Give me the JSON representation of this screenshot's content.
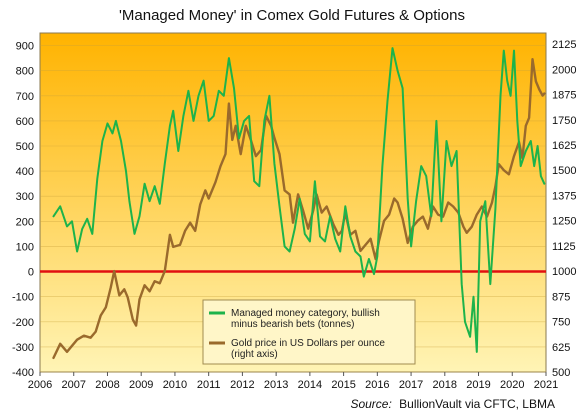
{
  "chart_data": {
    "type": "line",
    "title": "'Managed Money' in Comex Gold Futures & Options",
    "source_prefix": "Source:",
    "source_text": "BullionVault via CFTC, LBMA",
    "x_ticks": [
      "2006",
      "2007",
      "2008",
      "2009",
      "2010",
      "2011",
      "2012",
      "2013",
      "2014",
      "2015",
      "2016",
      "2017",
      "2018",
      "2019",
      "2020",
      "2021"
    ],
    "xlim": [
      2006,
      2021
    ],
    "y_left": {
      "min": -400,
      "max": 950,
      "ticks": [
        "900",
        "800",
        "700",
        "600",
        "500",
        "400",
        "300",
        "200",
        "100",
        "0",
        "-100",
        "-200",
        "-300",
        "-400"
      ]
    },
    "y_right": {
      "min": 500,
      "max": 2180,
      "ticks": [
        "2125",
        "2000",
        "1875",
        "1750",
        "1625",
        "1500",
        "1375",
        "1250",
        "1125",
        "1000",
        "875",
        "750",
        "625",
        "500"
      ]
    },
    "zero_line_value": 0,
    "legend": [
      {
        "label": [
          "Managed money category, bullish",
          "minus bearish bets (tonnes)"
        ],
        "color": "#1db34b"
      },
      {
        "label": [
          "Gold price in US Dollars per ounce",
          "(right axis)"
        ],
        "color": "#9a6a2c"
      }
    ],
    "colors": {
      "managed_money": "#1db34b",
      "gold": "#9a6a2c",
      "zero_line": "#e01010",
      "bg_top": "#ffb300",
      "bg_bottom": "#fff4b5"
    },
    "series": [
      {
        "name": "Managed money category, bullish minus bearish bets (tonnes)",
        "axis": "left",
        "points": [
          [
            2006.4,
            220
          ],
          [
            2006.6,
            260
          ],
          [
            2006.8,
            180
          ],
          [
            2006.95,
            200
          ],
          [
            2007.1,
            80
          ],
          [
            2007.25,
            170
          ],
          [
            2007.4,
            210
          ],
          [
            2007.55,
            150
          ],
          [
            2007.7,
            370
          ],
          [
            2007.85,
            520
          ],
          [
            2008.0,
            590
          ],
          [
            2008.15,
            550
          ],
          [
            2008.25,
            600
          ],
          [
            2008.4,
            520
          ],
          [
            2008.55,
            400
          ],
          [
            2008.65,
            280
          ],
          [
            2008.8,
            150
          ],
          [
            2008.95,
            220
          ],
          [
            2009.1,
            350
          ],
          [
            2009.25,
            280
          ],
          [
            2009.4,
            340
          ],
          [
            2009.55,
            270
          ],
          [
            2009.7,
            430
          ],
          [
            2009.85,
            580
          ],
          [
            2009.95,
            640
          ],
          [
            2010.1,
            480
          ],
          [
            2010.25,
            620
          ],
          [
            2010.4,
            720
          ],
          [
            2010.55,
            600
          ],
          [
            2010.7,
            700
          ],
          [
            2010.85,
            760
          ],
          [
            2011.0,
            600
          ],
          [
            2011.15,
            620
          ],
          [
            2011.3,
            720
          ],
          [
            2011.45,
            700
          ],
          [
            2011.6,
            850
          ],
          [
            2011.75,
            730
          ],
          [
            2011.9,
            530
          ],
          [
            2012.05,
            600
          ],
          [
            2012.2,
            620
          ],
          [
            2012.35,
            360
          ],
          [
            2012.5,
            340
          ],
          [
            2012.65,
            600
          ],
          [
            2012.8,
            700
          ],
          [
            2012.95,
            430
          ],
          [
            2013.1,
            260
          ],
          [
            2013.25,
            100
          ],
          [
            2013.4,
            80
          ],
          [
            2013.55,
            170
          ],
          [
            2013.7,
            290
          ],
          [
            2013.85,
            150
          ],
          [
            2014.0,
            120
          ],
          [
            2014.15,
            360
          ],
          [
            2014.3,
            140
          ],
          [
            2014.45,
            120
          ],
          [
            2014.6,
            220
          ],
          [
            2014.75,
            130
          ],
          [
            2014.9,
            80
          ],
          [
            2015.05,
            260
          ],
          [
            2015.2,
            140
          ],
          [
            2015.35,
            80
          ],
          [
            2015.5,
            60
          ],
          [
            2015.6,
            -20
          ],
          [
            2015.75,
            50
          ],
          [
            2015.9,
            -10
          ],
          [
            2016.0,
            60
          ],
          [
            2016.15,
            420
          ],
          [
            2016.3,
            680
          ],
          [
            2016.45,
            890
          ],
          [
            2016.6,
            800
          ],
          [
            2016.75,
            730
          ],
          [
            2016.9,
            290
          ],
          [
            2017.0,
            100
          ],
          [
            2017.15,
            280
          ],
          [
            2017.3,
            420
          ],
          [
            2017.45,
            380
          ],
          [
            2017.6,
            220
          ],
          [
            2017.75,
            600
          ],
          [
            2017.9,
            200
          ],
          [
            2018.05,
            520
          ],
          [
            2018.2,
            420
          ],
          [
            2018.35,
            480
          ],
          [
            2018.5,
            -50
          ],
          [
            2018.6,
            -200
          ],
          [
            2018.75,
            -260
          ],
          [
            2018.85,
            -100
          ],
          [
            2018.95,
            -320
          ],
          [
            2019.05,
            200
          ],
          [
            2019.2,
            280
          ],
          [
            2019.35,
            -50
          ],
          [
            2019.5,
            250
          ],
          [
            2019.65,
            700
          ],
          [
            2019.75,
            880
          ],
          [
            2019.85,
            760
          ],
          [
            2019.95,
            700
          ],
          [
            2020.05,
            880
          ],
          [
            2020.15,
            600
          ],
          [
            2020.25,
            420
          ],
          [
            2020.4,
            480
          ],
          [
            2020.55,
            520
          ],
          [
            2020.65,
            420
          ],
          [
            2020.75,
            500
          ],
          [
            2020.85,
            380
          ],
          [
            2020.95,
            350
          ]
        ]
      },
      {
        "name": "Gold price in US Dollars per ounce (right axis)",
        "axis": "right",
        "points": [
          [
            2006.4,
            570
          ],
          [
            2006.6,
            640
          ],
          [
            2006.8,
            600
          ],
          [
            2006.95,
            630
          ],
          [
            2007.1,
            660
          ],
          [
            2007.3,
            680
          ],
          [
            2007.5,
            670
          ],
          [
            2007.65,
            700
          ],
          [
            2007.8,
            780
          ],
          [
            2007.95,
            820
          ],
          [
            2008.1,
            920
          ],
          [
            2008.2,
            1000
          ],
          [
            2008.35,
            880
          ],
          [
            2008.5,
            910
          ],
          [
            2008.6,
            870
          ],
          [
            2008.75,
            760
          ],
          [
            2008.85,
            730
          ],
          [
            2008.95,
            860
          ],
          [
            2009.1,
            930
          ],
          [
            2009.25,
            900
          ],
          [
            2009.4,
            950
          ],
          [
            2009.55,
            940
          ],
          [
            2009.7,
            1000
          ],
          [
            2009.85,
            1180
          ],
          [
            2009.95,
            1120
          ],
          [
            2010.15,
            1130
          ],
          [
            2010.3,
            1200
          ],
          [
            2010.45,
            1240
          ],
          [
            2010.6,
            1200
          ],
          [
            2010.75,
            1330
          ],
          [
            2010.9,
            1400
          ],
          [
            2011.0,
            1360
          ],
          [
            2011.2,
            1440
          ],
          [
            2011.35,
            1520
          ],
          [
            2011.5,
            1580
          ],
          [
            2011.6,
            1830
          ],
          [
            2011.7,
            1650
          ],
          [
            2011.8,
            1720
          ],
          [
            2011.95,
            1580
          ],
          [
            2012.1,
            1720
          ],
          [
            2012.25,
            1650
          ],
          [
            2012.4,
            1570
          ],
          [
            2012.55,
            1600
          ],
          [
            2012.7,
            1770
          ],
          [
            2012.85,
            1720
          ],
          [
            2012.95,
            1660
          ],
          [
            2013.1,
            1580
          ],
          [
            2013.25,
            1400
          ],
          [
            2013.4,
            1380
          ],
          [
            2013.5,
            1240
          ],
          [
            2013.65,
            1380
          ],
          [
            2013.8,
            1300
          ],
          [
            2013.95,
            1210
          ],
          [
            2014.1,
            1300
          ],
          [
            2014.2,
            1380
          ],
          [
            2014.35,
            1290
          ],
          [
            2014.5,
            1320
          ],
          [
            2014.7,
            1230
          ],
          [
            2014.85,
            1180
          ],
          [
            2014.95,
            1200
          ],
          [
            2015.05,
            1290
          ],
          [
            2015.2,
            1180
          ],
          [
            2015.35,
            1200
          ],
          [
            2015.5,
            1100
          ],
          [
            2015.65,
            1130
          ],
          [
            2015.8,
            1160
          ],
          [
            2015.95,
            1060
          ],
          [
            2016.05,
            1150
          ],
          [
            2016.2,
            1250
          ],
          [
            2016.35,
            1280
          ],
          [
            2016.5,
            1360
          ],
          [
            2016.6,
            1340
          ],
          [
            2016.75,
            1260
          ],
          [
            2016.9,
            1140
          ],
          [
            2017.05,
            1220
          ],
          [
            2017.2,
            1250
          ],
          [
            2017.35,
            1270
          ],
          [
            2017.5,
            1210
          ],
          [
            2017.65,
            1320
          ],
          [
            2017.8,
            1280
          ],
          [
            2017.95,
            1270
          ],
          [
            2018.1,
            1340
          ],
          [
            2018.25,
            1320
          ],
          [
            2018.4,
            1290
          ],
          [
            2018.55,
            1220
          ],
          [
            2018.65,
            1190
          ],
          [
            2018.8,
            1220
          ],
          [
            2018.95,
            1280
          ],
          [
            2019.1,
            1320
          ],
          [
            2019.25,
            1270
          ],
          [
            2019.4,
            1340
          ],
          [
            2019.5,
            1420
          ],
          [
            2019.6,
            1530
          ],
          [
            2019.75,
            1500
          ],
          [
            2019.9,
            1480
          ],
          [
            2020.05,
            1570
          ],
          [
            2020.2,
            1640
          ],
          [
            2020.3,
            1560
          ],
          [
            2020.4,
            1720
          ],
          [
            2020.5,
            1760
          ],
          [
            2020.6,
            2050
          ],
          [
            2020.7,
            1940
          ],
          [
            2020.8,
            1900
          ],
          [
            2020.9,
            1870
          ],
          [
            2020.95,
            1880
          ]
        ]
      }
    ]
  }
}
